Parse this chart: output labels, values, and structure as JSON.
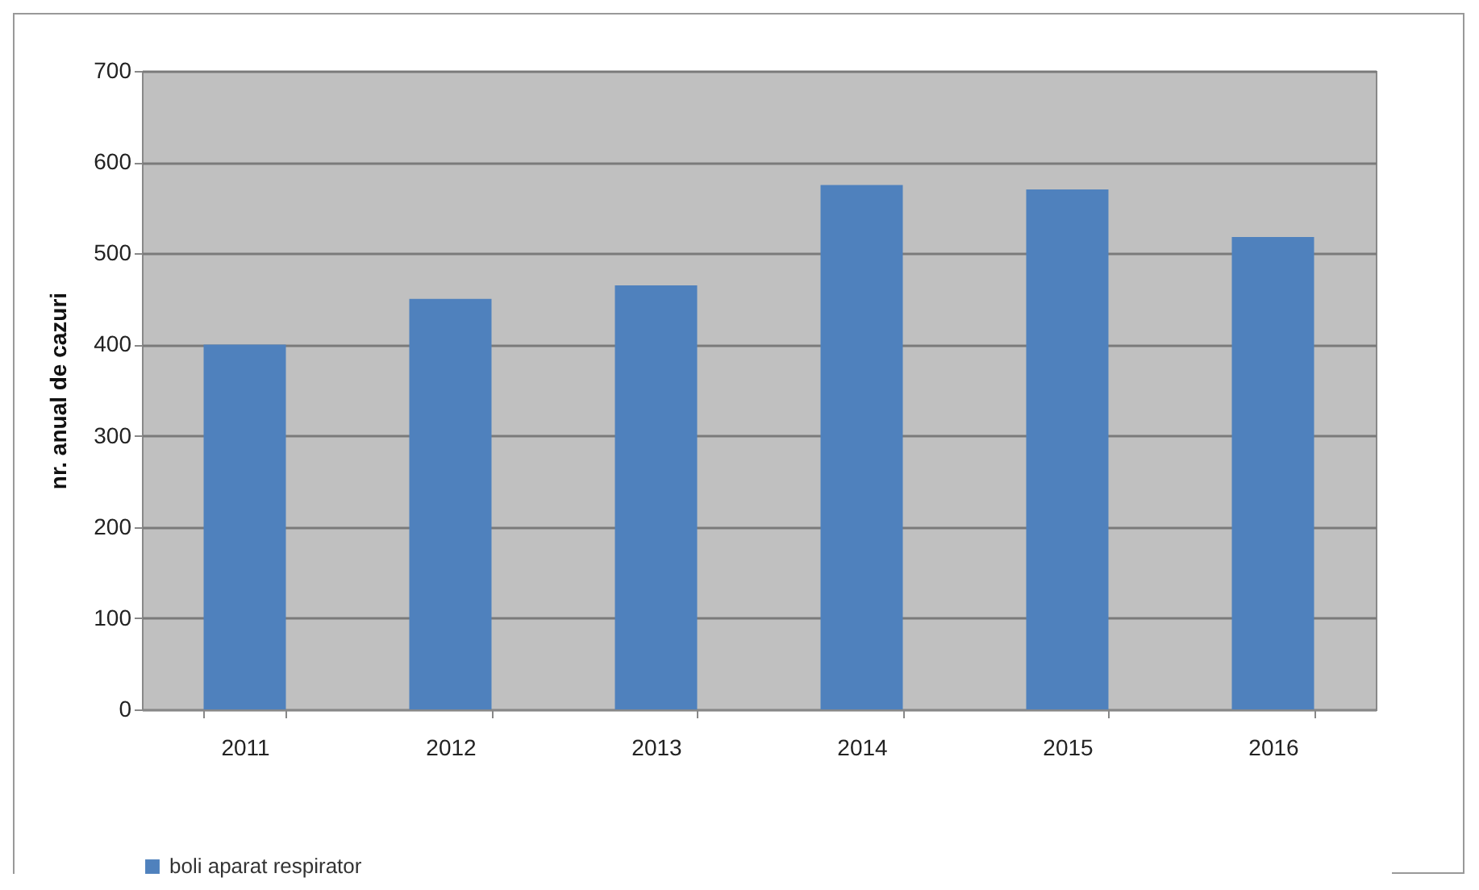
{
  "chart_data": {
    "type": "bar",
    "ylabel": "nr. anual de cazuri",
    "categories": [
      "2011",
      "2012",
      "2013",
      "2014",
      "2015",
      "2016"
    ],
    "series": [
      {
        "name": "boli aparat respirator",
        "color": "#4f81bd",
        "values": [
          400,
          450,
          465,
          575,
          570,
          518
        ]
      }
    ],
    "ylim": [
      0,
      700
    ],
    "yticks": [
      0,
      100,
      200,
      300,
      400,
      500,
      600,
      700
    ],
    "grid": "y",
    "legend": "bottom"
  }
}
